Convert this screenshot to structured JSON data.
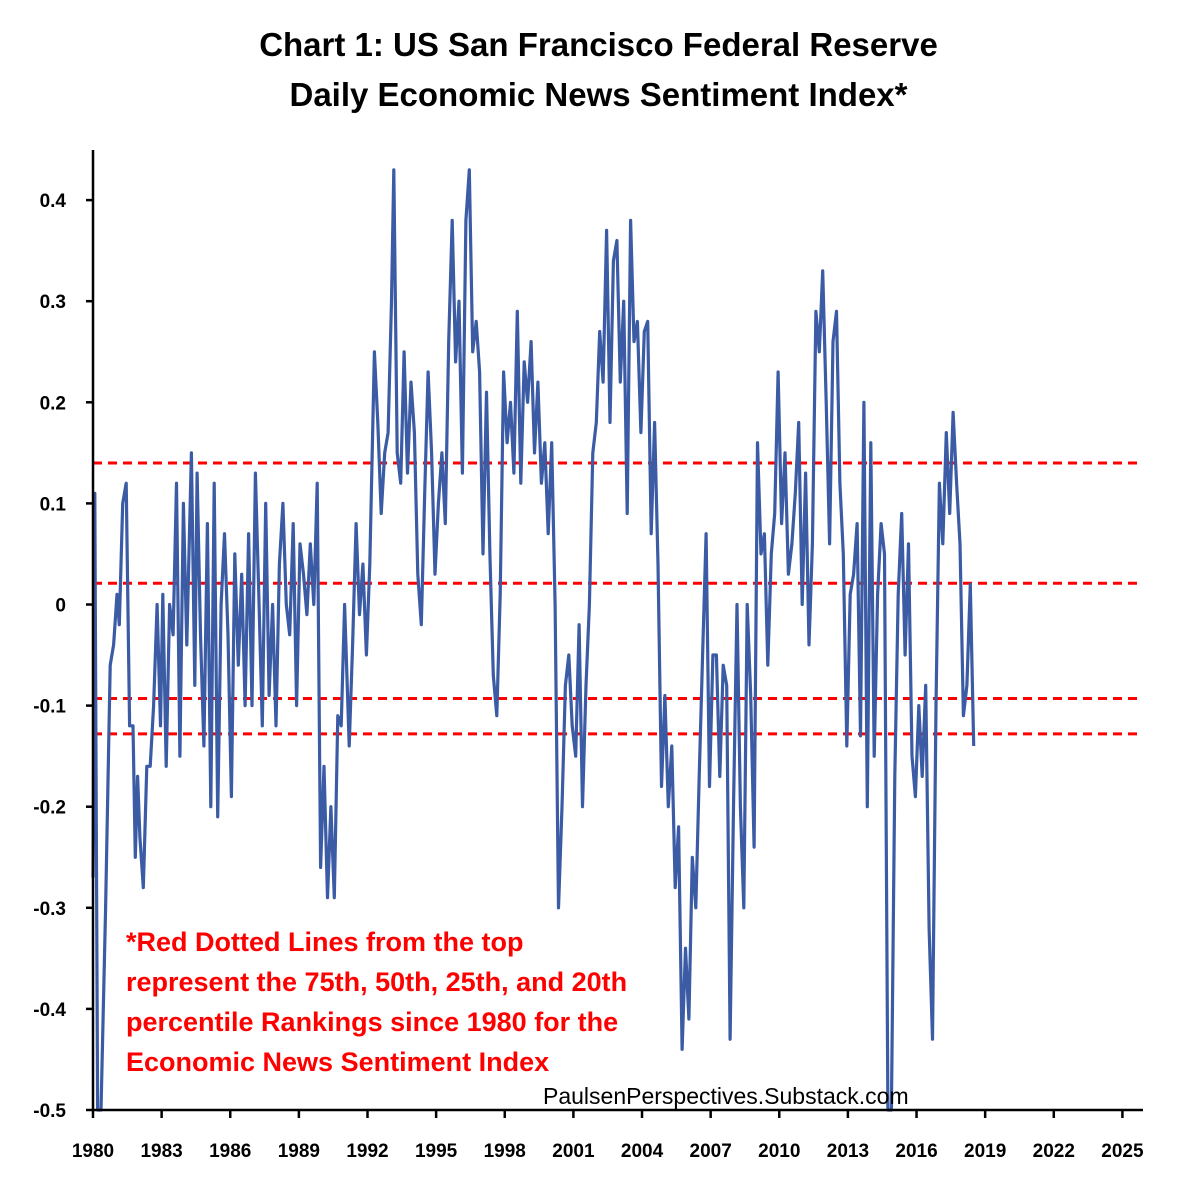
{
  "title_line1": "Chart 1: US San Francisco Federal Reserve",
  "title_line2": "Daily Economic News Sentiment Index*",
  "note_lines": [
    "*Red Dotted Lines from the top",
    "represent the 75th, 50th, 25th, and 20th",
    "percentile Rankings since 1980 for the",
    "Economic News Sentiment Index"
  ],
  "credit": "PaulsenPerspectives.Substack.com",
  "colors": {
    "series": "#3b5ba5",
    "reference": "#ff0000",
    "axis": "#000000"
  },
  "chart_data": {
    "type": "line",
    "title": "Chart 1: US San Francisco Federal Reserve Daily Economic News Sentiment Index*",
    "xlabel": "",
    "ylabel": "",
    "xlim": [
      1980,
      2025.9
    ],
    "ylim": [
      -0.5,
      0.45
    ],
    "x_ticks": [
      1980,
      1983,
      1986,
      1989,
      1992,
      1995,
      1998,
      2001,
      2004,
      2007,
      2010,
      2013,
      2016,
      2019,
      2022,
      2025
    ],
    "x_tick_labels": [
      "1980",
      "1983",
      "1986",
      "1989",
      "1992",
      "1995",
      "1998",
      "2001",
      "2004",
      "2007",
      "2010",
      "2013",
      "2016",
      "2019",
      "2022",
      "2025"
    ],
    "y_ticks": [
      0.4,
      0.3,
      0.2,
      0.1,
      0,
      -0.1,
      -0.2,
      -0.3,
      -0.4,
      -0.5
    ],
    "y_tick_labels": [
      "0.4",
      "0.3",
      "0.2",
      "0.1",
      "0",
      "-0.1",
      "-0.2",
      "-0.3",
      "-0.4",
      "-0.5"
    ],
    "grid": false,
    "reference_lines": [
      {
        "label": "75th percentile",
        "value": 0.14
      },
      {
        "label": "50th percentile",
        "value": 0.021
      },
      {
        "label": "25th percentile",
        "value": -0.093
      },
      {
        "label": "20th percentile",
        "value": -0.128
      }
    ],
    "series": [
      {
        "name": "Economic News Sentiment Index",
        "points": [
          [
            1980.0,
            -0.27
          ],
          [
            1980.08,
            0.11
          ],
          [
            1980.2,
            -0.5
          ],
          [
            1980.35,
            -0.5
          ],
          [
            1980.55,
            -0.3
          ],
          [
            1980.75,
            -0.06
          ],
          [
            1980.9,
            -0.04
          ],
          [
            1981.05,
            0.01
          ],
          [
            1981.15,
            -0.02
          ],
          [
            1981.3,
            0.1
          ],
          [
            1981.45,
            0.12
          ],
          [
            1981.6,
            -0.12
          ],
          [
            1981.75,
            -0.12
          ],
          [
            1981.85,
            -0.25
          ],
          [
            1981.95,
            -0.17
          ],
          [
            1982.05,
            -0.23
          ],
          [
            1982.2,
            -0.28
          ],
          [
            1982.35,
            -0.16
          ],
          [
            1982.5,
            -0.16
          ],
          [
            1982.65,
            -0.1
          ],
          [
            1982.8,
            0.0
          ],
          [
            1982.95,
            -0.12
          ],
          [
            1983.05,
            0.01
          ],
          [
            1983.2,
            -0.16
          ],
          [
            1983.35,
            0.0
          ],
          [
            1983.5,
            -0.03
          ],
          [
            1983.65,
            0.12
          ],
          [
            1983.8,
            -0.15
          ],
          [
            1983.95,
            0.1
          ],
          [
            1984.1,
            -0.04
          ],
          [
            1984.3,
            0.15
          ],
          [
            1984.45,
            -0.08
          ],
          [
            1984.55,
            0.13
          ],
          [
            1984.7,
            -0.03
          ],
          [
            1984.85,
            -0.14
          ],
          [
            1985.0,
            0.08
          ],
          [
            1985.15,
            -0.2
          ],
          [
            1985.3,
            0.12
          ],
          [
            1985.45,
            -0.21
          ],
          [
            1985.6,
            0.0
          ],
          [
            1985.75,
            0.07
          ],
          [
            1985.9,
            -0.03
          ],
          [
            1986.05,
            -0.19
          ],
          [
            1986.2,
            0.05
          ],
          [
            1986.35,
            -0.06
          ],
          [
            1986.5,
            0.03
          ],
          [
            1986.65,
            -0.1
          ],
          [
            1986.8,
            0.07
          ],
          [
            1986.95,
            -0.1
          ],
          [
            1987.1,
            0.13
          ],
          [
            1987.25,
            0.01
          ],
          [
            1987.4,
            -0.12
          ],
          [
            1987.55,
            0.1
          ],
          [
            1987.7,
            -0.09
          ],
          [
            1987.85,
            0.0
          ],
          [
            1988.0,
            -0.12
          ],
          [
            1988.15,
            0.04
          ],
          [
            1988.3,
            0.1
          ],
          [
            1988.45,
            0.0
          ],
          [
            1988.6,
            -0.03
          ],
          [
            1988.75,
            0.08
          ],
          [
            1988.9,
            -0.1
          ],
          [
            1989.05,
            0.06
          ],
          [
            1989.2,
            0.03
          ],
          [
            1989.35,
            -0.01
          ],
          [
            1989.5,
            0.06
          ],
          [
            1989.65,
            0.0
          ],
          [
            1989.8,
            0.12
          ],
          [
            1989.95,
            -0.26
          ],
          [
            1990.1,
            -0.16
          ],
          [
            1990.25,
            -0.29
          ],
          [
            1990.4,
            -0.2
          ],
          [
            1990.55,
            -0.29
          ],
          [
            1990.7,
            -0.11
          ],
          [
            1990.85,
            -0.12
          ],
          [
            1991.0,
            0.0
          ],
          [
            1991.2,
            -0.14
          ],
          [
            1991.35,
            -0.04
          ],
          [
            1991.5,
            0.08
          ],
          [
            1991.65,
            -0.01
          ],
          [
            1991.8,
            0.04
          ],
          [
            1991.95,
            -0.05
          ],
          [
            1992.1,
            0.04
          ],
          [
            1992.3,
            0.25
          ],
          [
            1992.45,
            0.18
          ],
          [
            1992.6,
            0.09
          ],
          [
            1992.75,
            0.15
          ],
          [
            1992.9,
            0.17
          ],
          [
            1993.05,
            0.3
          ],
          [
            1993.15,
            0.43
          ],
          [
            1993.3,
            0.15
          ],
          [
            1993.45,
            0.12
          ],
          [
            1993.6,
            0.25
          ],
          [
            1993.75,
            0.13
          ],
          [
            1993.9,
            0.22
          ],
          [
            1994.05,
            0.17
          ],
          [
            1994.2,
            0.03
          ],
          [
            1994.35,
            -0.02
          ],
          [
            1994.5,
            0.11
          ],
          [
            1994.65,
            0.23
          ],
          [
            1994.8,
            0.15
          ],
          [
            1994.95,
            0.03
          ],
          [
            1995.1,
            0.1
          ],
          [
            1995.25,
            0.15
          ],
          [
            1995.4,
            0.08
          ],
          [
            1995.55,
            0.26
          ],
          [
            1995.7,
            0.38
          ],
          [
            1995.85,
            0.24
          ],
          [
            1996.0,
            0.3
          ],
          [
            1996.15,
            0.13
          ],
          [
            1996.3,
            0.38
          ],
          [
            1996.45,
            0.43
          ],
          [
            1996.6,
            0.25
          ],
          [
            1996.75,
            0.28
          ],
          [
            1996.9,
            0.23
          ],
          [
            1997.05,
            0.05
          ],
          [
            1997.2,
            0.21
          ],
          [
            1997.35,
            0.05
          ],
          [
            1997.5,
            -0.07
          ],
          [
            1997.65,
            -0.11
          ],
          [
            1997.8,
            0.01
          ],
          [
            1997.95,
            0.23
          ],
          [
            1998.1,
            0.16
          ],
          [
            1998.25,
            0.2
          ],
          [
            1998.4,
            0.13
          ],
          [
            1998.55,
            0.29
          ],
          [
            1998.7,
            0.12
          ],
          [
            1998.85,
            0.24
          ],
          [
            1999.0,
            0.2
          ],
          [
            1999.15,
            0.26
          ],
          [
            1999.3,
            0.15
          ],
          [
            1999.45,
            0.22
          ],
          [
            1999.6,
            0.12
          ],
          [
            1999.75,
            0.16
          ],
          [
            1999.9,
            0.07
          ],
          [
            2000.05,
            0.16
          ],
          [
            2000.2,
            0.0
          ],
          [
            2000.35,
            -0.3
          ],
          [
            2000.5,
            -0.2
          ],
          [
            2000.65,
            -0.08
          ],
          [
            2000.8,
            -0.05
          ],
          [
            2000.95,
            -0.12
          ],
          [
            2001.1,
            -0.15
          ],
          [
            2001.25,
            -0.02
          ],
          [
            2001.4,
            -0.2
          ],
          [
            2001.55,
            -0.08
          ],
          [
            2001.7,
            0.0
          ],
          [
            2001.85,
            0.15
          ],
          [
            2002.0,
            0.18
          ],
          [
            2002.15,
            0.27
          ],
          [
            2002.3,
            0.22
          ],
          [
            2002.45,
            0.37
          ],
          [
            2002.6,
            0.18
          ],
          [
            2002.75,
            0.34
          ],
          [
            2002.9,
            0.36
          ],
          [
            2003.05,
            0.22
          ],
          [
            2003.2,
            0.3
          ],
          [
            2003.35,
            0.09
          ],
          [
            2003.5,
            0.38
          ],
          [
            2003.65,
            0.26
          ],
          [
            2003.8,
            0.28
          ],
          [
            2003.95,
            0.17
          ],
          [
            2004.1,
            0.27
          ],
          [
            2004.25,
            0.28
          ],
          [
            2004.4,
            0.07
          ],
          [
            2004.55,
            0.18
          ],
          [
            2004.7,
            0.04
          ],
          [
            2004.85,
            -0.18
          ],
          [
            2005.0,
            -0.09
          ],
          [
            2005.15,
            -0.2
          ],
          [
            2005.3,
            -0.14
          ],
          [
            2005.45,
            -0.28
          ],
          [
            2005.6,
            -0.22
          ],
          [
            2005.75,
            -0.44
          ],
          [
            2005.9,
            -0.34
          ],
          [
            2006.05,
            -0.41
          ],
          [
            2006.2,
            -0.25
          ],
          [
            2006.35,
            -0.3
          ],
          [
            2006.5,
            -0.17
          ],
          [
            2006.65,
            -0.05
          ],
          [
            2006.8,
            0.07
          ],
          [
            2006.95,
            -0.18
          ],
          [
            2007.1,
            -0.05
          ],
          [
            2007.25,
            -0.05
          ],
          [
            2007.4,
            -0.17
          ],
          [
            2007.55,
            -0.06
          ],
          [
            2007.7,
            -0.08
          ],
          [
            2007.85,
            -0.43
          ],
          [
            2008.0,
            -0.2
          ],
          [
            2008.15,
            0.0
          ],
          [
            2008.3,
            -0.2
          ],
          [
            2008.45,
            -0.3
          ],
          [
            2008.6,
            0.0
          ],
          [
            2008.75,
            -0.09
          ],
          [
            2008.9,
            -0.24
          ],
          [
            2009.05,
            0.16
          ],
          [
            2009.2,
            0.05
          ],
          [
            2009.35,
            0.07
          ],
          [
            2009.5,
            -0.06
          ],
          [
            2009.65,
            0.05
          ],
          [
            2009.8,
            0.09
          ],
          [
            2009.95,
            0.23
          ],
          [
            2010.1,
            0.08
          ],
          [
            2010.25,
            0.15
          ],
          [
            2010.4,
            0.03
          ],
          [
            2010.55,
            0.06
          ],
          [
            2010.7,
            0.11
          ],
          [
            2010.85,
            0.18
          ],
          [
            2011.0,
            0.0
          ],
          [
            2011.15,
            0.13
          ],
          [
            2011.3,
            -0.04
          ],
          [
            2011.45,
            0.06
          ],
          [
            2011.6,
            0.29
          ],
          [
            2011.75,
            0.25
          ],
          [
            2011.9,
            0.33
          ],
          [
            2012.05,
            0.2
          ],
          [
            2012.2,
            0.06
          ],
          [
            2012.35,
            0.26
          ],
          [
            2012.5,
            0.29
          ],
          [
            2012.65,
            0.12
          ],
          [
            2012.8,
            0.05
          ],
          [
            2012.95,
            -0.14
          ],
          [
            2013.1,
            0.01
          ],
          [
            2013.25,
            0.03
          ],
          [
            2013.4,
            0.08
          ],
          [
            2013.55,
            -0.13
          ],
          [
            2013.7,
            0.2
          ],
          [
            2013.85,
            -0.2
          ],
          [
            2014.0,
            0.16
          ],
          [
            2014.15,
            -0.15
          ],
          [
            2014.3,
            0.01
          ],
          [
            2014.45,
            0.08
          ],
          [
            2014.6,
            0.05
          ],
          [
            2014.75,
            -0.53
          ],
          [
            2014.9,
            -0.5
          ],
          [
            2015.05,
            -0.17
          ],
          [
            2015.2,
            0.01
          ],
          [
            2015.35,
            0.09
          ],
          [
            2015.5,
            -0.05
          ],
          [
            2015.65,
            0.06
          ],
          [
            2015.8,
            -0.15
          ],
          [
            2015.95,
            -0.19
          ],
          [
            2016.1,
            -0.1
          ],
          [
            2016.25,
            -0.17
          ],
          [
            2016.4,
            -0.08
          ],
          [
            2016.55,
            -0.32
          ],
          [
            2016.7,
            -0.43
          ],
          [
            2016.85,
            -0.1
          ],
          [
            2017.0,
            0.12
          ],
          [
            2017.15,
            0.06
          ],
          [
            2017.3,
            0.17
          ],
          [
            2017.45,
            0.09
          ],
          [
            2017.6,
            0.19
          ],
          [
            2017.75,
            0.12
          ],
          [
            2017.9,
            0.06
          ],
          [
            2018.05,
            -0.11
          ],
          [
            2018.2,
            -0.08
          ],
          [
            2018.35,
            0.02
          ],
          [
            2018.5,
            -0.14
          ]
        ]
      }
    ]
  }
}
